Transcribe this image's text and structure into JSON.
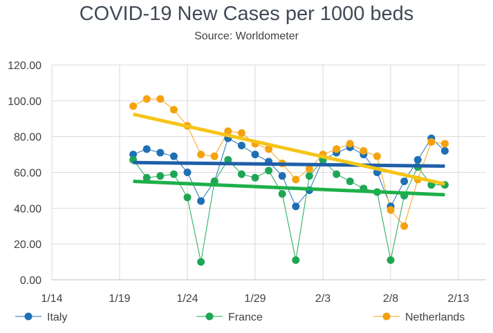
{
  "chart_data": {
    "type": "line",
    "title": "COVID-19 New Cases per 1000 beds",
    "subtitle": "Source: Worldometer",
    "xlabel": "",
    "ylabel": "",
    "x_ticks": [
      "1/14",
      "1/19",
      "1/24",
      "1/29",
      "2/3",
      "2/8",
      "2/13"
    ],
    "y_ticks": [
      "0.00",
      "20.00",
      "40.00",
      "60.00",
      "80.00",
      "100.00",
      "120.00"
    ],
    "ylim": [
      0,
      120
    ],
    "grid": true,
    "legend": "bottom",
    "x": [
      "1/20",
      "1/21",
      "1/22",
      "1/23",
      "1/24",
      "1/25",
      "1/26",
      "1/27",
      "1/28",
      "1/29",
      "1/30",
      "1/31",
      "2/1",
      "2/2",
      "2/3",
      "2/4",
      "2/5",
      "2/6",
      "2/7",
      "2/8",
      "2/9",
      "2/10",
      "2/11",
      "2/12"
    ],
    "series": [
      {
        "name": "Italy",
        "color": "#1f6fb4",
        "trend_color": "#1f5fa8",
        "values": [
          70,
          73,
          71,
          69,
          60,
          44,
          55,
          79,
          75,
          70,
          66,
          58,
          41,
          50,
          67,
          71,
          74,
          70,
          60,
          41,
          55,
          67,
          79,
          72
        ],
        "trend": [
          65.5,
          63.5
        ]
      },
      {
        "name": "France",
        "color": "#1ea655",
        "trend_color": "#1db04a",
        "values": [
          67,
          57,
          58,
          59,
          46,
          10,
          55,
          67,
          59,
          57,
          61,
          48,
          11,
          58,
          67,
          59,
          55,
          51,
          49,
          11,
          47,
          63,
          53,
          53
        ],
        "trend": [
          55,
          47.5
        ]
      },
      {
        "name": "Netherlands",
        "color": "#f5a20f",
        "trend_color": "#f5c518",
        "values": [
          97,
          101,
          101,
          95,
          86,
          70,
          69,
          83,
          82,
          76,
          73,
          65,
          56,
          62,
          70,
          73,
          76,
          72,
          69,
          39,
          30,
          56,
          77,
          76
        ],
        "trend": [
          92.5,
          53.5
        ]
      }
    ]
  }
}
